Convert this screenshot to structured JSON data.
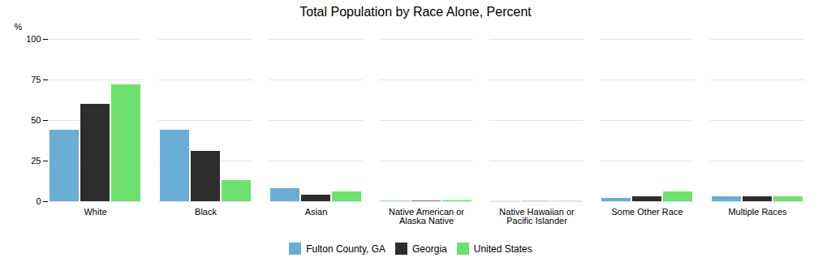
{
  "chart_data": {
    "type": "bar",
    "title": "Total Population by Race Alone, Percent",
    "categories": [
      "White",
      "Black",
      "Asian",
      "Native American or\nAlaska Native",
      "Native Hawaiian or\nPacific Islander",
      "Some Other Race",
      "Multiple Races"
    ],
    "series": [
      {
        "name": "Fulton County, GA",
        "color": "#6aaed6",
        "values": [
          44,
          44,
          8,
          0.3,
          0.1,
          2,
          3
        ]
      },
      {
        "name": "Georgia",
        "color": "#2d2d2d",
        "values": [
          60,
          31,
          4,
          0.3,
          0.1,
          3,
          3
        ]
      },
      {
        "name": "United States",
        "color": "#6ee06e",
        "values": [
          72,
          13,
          6,
          0.7,
          0.2,
          6,
          3
        ]
      }
    ],
    "ylim": [
      0,
      100
    ],
    "yticks": [
      0,
      25,
      50,
      75,
      100
    ],
    "ylabel": "%",
    "grid": true,
    "legend": "bottom"
  }
}
